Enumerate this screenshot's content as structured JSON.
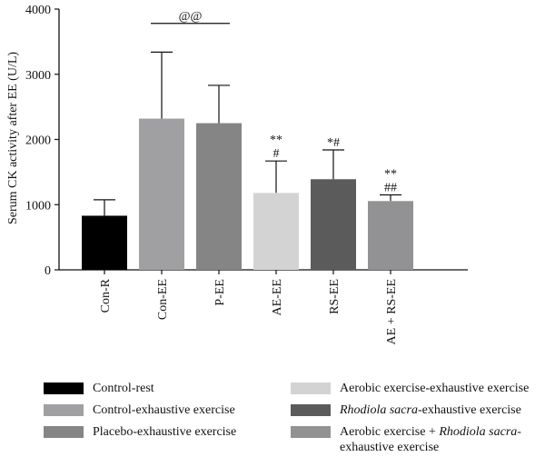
{
  "chart_data": {
    "type": "bar",
    "ylabel": "Serum CK activity after EE (U/L)",
    "ylim": [
      0,
      4000
    ],
    "yticks": [
      "0",
      "1000",
      "2000",
      "3000",
      "4000"
    ],
    "categories": [
      "Con-R",
      "Con-EE",
      "P-EE",
      "AE-EE",
      "RS-EE",
      "AE + RS-EE"
    ],
    "values": [
      830,
      2320,
      2250,
      1180,
      1390,
      1055
    ],
    "errors": [
      245,
      1020,
      580,
      490,
      450,
      95
    ],
    "colors": [
      "#000000",
      "#a0a0a2",
      "#858585",
      "#d3d3d3",
      "#5b5b5b",
      "#929294"
    ],
    "significance": [
      {
        "bar": 3,
        "lines": [
          "**",
          "#"
        ]
      },
      {
        "bar": 4,
        "lines": [
          "*#"
        ]
      },
      {
        "bar": 5,
        "lines": [
          "**",
          "##"
        ]
      }
    ],
    "bracket": {
      "from": 1,
      "to": 2,
      "label": "@@",
      "y": 3780
    }
  },
  "legend": {
    "left": [
      {
        "label": "Control-rest",
        "color": "#000000"
      },
      {
        "label": "Control-exhaustive exercise",
        "color": "#a0a0a2"
      },
      {
        "label": "Placebo-exhaustive exercise",
        "color": "#858585"
      }
    ],
    "right": [
      {
        "label": "Aerobic exercise-exhaustive exercise",
        "color": "#d3d3d3"
      },
      {
        "pre": "",
        "italic": "Rhodiola sacra",
        "post": "-exhaustive exercise",
        "color": "#5b5b5b"
      },
      {
        "pre": "Aerobic exercise + ",
        "italic": "Rhodiola sacra",
        "post": "-",
        "line2": "exhaustive exercise",
        "color": "#929294"
      }
    ]
  }
}
